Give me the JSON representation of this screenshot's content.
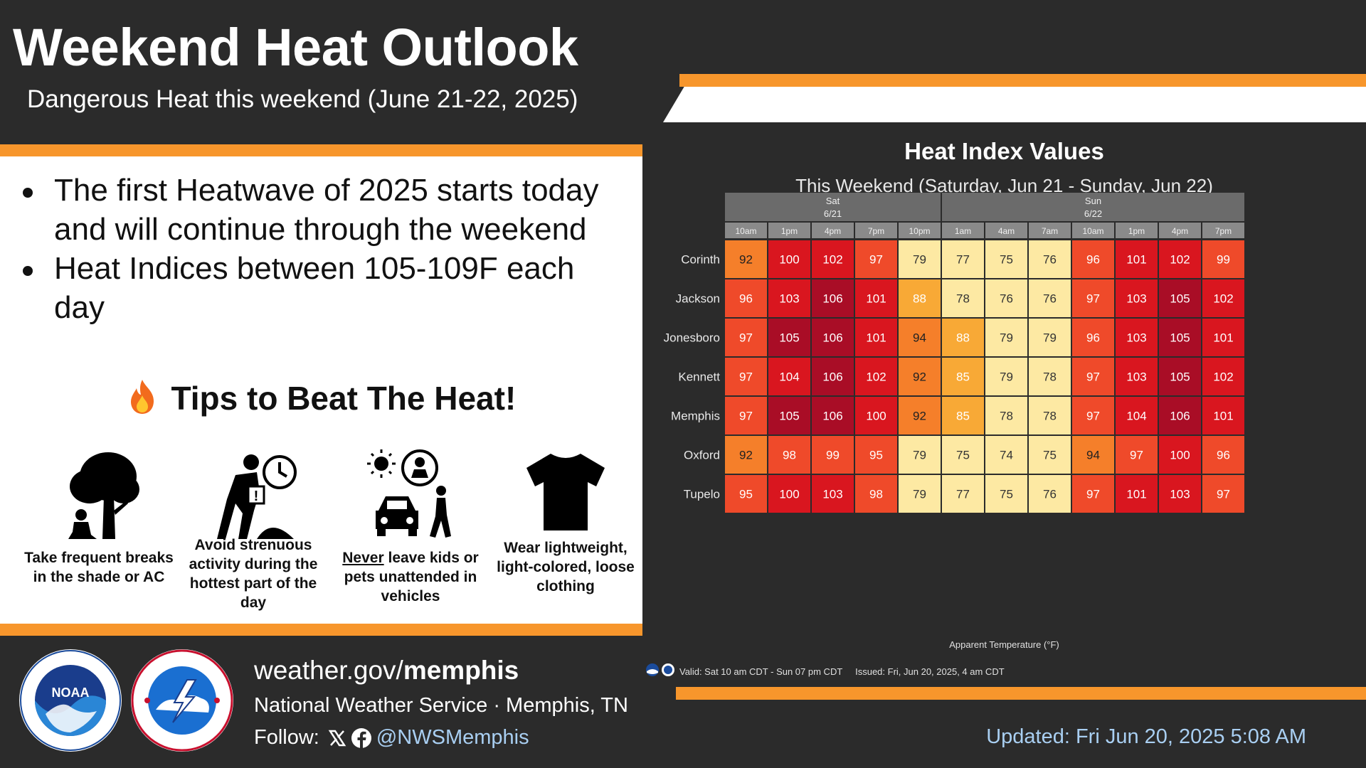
{
  "header": {
    "title": "Weekend Heat Outlook",
    "subtitle": "Dangerous Heat this weekend (June 21-22, 2025)"
  },
  "bullets": [
    "The first Heatwave of 2025 starts today and will continue through the weekend",
    "Heat Indices between 105-109F each day"
  ],
  "tips": {
    "title": "Tips to Beat The Heat!",
    "icon": "fire-icon",
    "items": [
      {
        "icon": "tree-shade-icon",
        "text": "Take frequent breaks in the shade or AC"
      },
      {
        "icon": "worker-clock-icon",
        "text": "Avoid strenuous activity during the hottest part of the day"
      },
      {
        "icon": "car-child-icon",
        "underline": "Never",
        "text": "leave kids or pets unattended in vehicles"
      },
      {
        "icon": "tshirt-icon",
        "text": "Wear lightweight, light-colored, loose clothing"
      }
    ]
  },
  "chart_data": {
    "type": "heatmap",
    "title": "Heat Index Values",
    "subtitle": "This Weekend (Saturday,  Jun 21 - Sunday, Jun 22)",
    "day_groups": [
      {
        "day": "Sat",
        "date": "6/21",
        "span": 5
      },
      {
        "day": "Sun",
        "date": "6/22",
        "span": 7
      }
    ],
    "columns": [
      "10am",
      "1pm",
      "4pm",
      "7pm",
      "10pm",
      "1am",
      "4am",
      "7am",
      "10am",
      "1pm",
      "4pm",
      "7pm"
    ],
    "rows": [
      "Corinth",
      "Jackson",
      "Jonesboro",
      "Kennett",
      "Memphis",
      "Oxford",
      "Tupelo"
    ],
    "values": [
      [
        92,
        100,
        102,
        97,
        79,
        77,
        75,
        76,
        96,
        101,
        102,
        99
      ],
      [
        96,
        103,
        106,
        101,
        88,
        78,
        76,
        76,
        97,
        103,
        105,
        102
      ],
      [
        97,
        105,
        106,
        101,
        94,
        88,
        79,
        79,
        96,
        103,
        105,
        101
      ],
      [
        97,
        104,
        106,
        102,
        92,
        85,
        79,
        78,
        97,
        103,
        105,
        102
      ],
      [
        97,
        105,
        106,
        100,
        92,
        85,
        78,
        78,
        97,
        104,
        106,
        101
      ],
      [
        92,
        98,
        99,
        95,
        79,
        75,
        74,
        75,
        94,
        97,
        100,
        96
      ],
      [
        95,
        100,
        103,
        98,
        79,
        77,
        75,
        76,
        97,
        101,
        103,
        97
      ]
    ],
    "xlabel": "Apparent Temperature (°F)",
    "valid": "Valid: Sat 10 am CDT - Sun 07 pm CDT",
    "issued": "Issued: Fri, Jun 20, 2025, 4 am CDT",
    "colors": {
      "74-79": "#fde9a3",
      "84-88": "#f8a936",
      "90-94": "#f57f2a",
      "95-99": "#ef4a2a",
      "100-104": "#d9161f",
      "105-109": "#a90d26",
      "header_bg": "#6b6b6b",
      "subheader_bg": "#8a8a8a"
    }
  },
  "footer": {
    "url_prefix": "weather.gov/",
    "url_bold": "memphis",
    "office": "National Weather Service · Memphis, TN",
    "follow_label": "Follow:",
    "handle": "@NWSMemphis",
    "updated": "Updated: Fri Jun 20, 2025 5:08 AM",
    "logos": [
      "noaa-logo",
      "nws-logo"
    ]
  }
}
